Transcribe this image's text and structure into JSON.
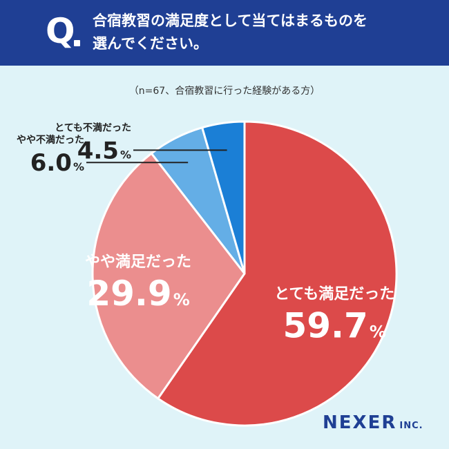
{
  "header": {
    "q_mark": "Q",
    "question_line1": "合宿教習の満足度として当てはまるものを",
    "question_line2": "選んでください。"
  },
  "note": "（n=67、合宿教習に行った経験がある方）",
  "brand": {
    "name": "NEXER",
    "suffix": "INC."
  },
  "colors": {
    "header_bg": "#1f3f94",
    "background": "#dff3f8"
  },
  "chart_data": {
    "type": "pie",
    "title": "",
    "unit": "%",
    "slices": [
      {
        "label": "とても満足だった",
        "value": 59.7,
        "value_text": "59.7",
        "color": "#dc4a4a"
      },
      {
        "label": "やや満足だった",
        "value": 29.9,
        "value_text": "29.9",
        "color": "#eb8e8e"
      },
      {
        "label": "やや不満だった",
        "value": 6.0,
        "value_text": "6.0",
        "color": "#64aee6"
      },
      {
        "label": "とても不満だった",
        "value": 4.5,
        "value_text": "4.5",
        "color": "#1b7fd6"
      }
    ]
  }
}
